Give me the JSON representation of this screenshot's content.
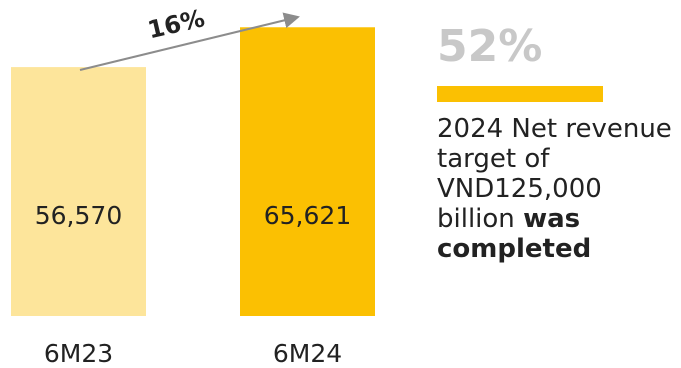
{
  "chart_data": {
    "type": "bar",
    "categories": [
      "6M23",
      "6M24"
    ],
    "values": [
      56570,
      65621
    ],
    "value_labels": [
      "56,570",
      "65,621"
    ],
    "colors": [
      "#fde59b",
      "#fbc002"
    ],
    "ylim": [
      0,
      70000
    ],
    "title": "",
    "xlabel": "",
    "ylabel": "",
    "grid": false,
    "annotations": [
      {
        "text": "16%",
        "type": "growth-arrow"
      }
    ]
  },
  "side_panel": {
    "percent": "52%",
    "accent_color": "#fbc002",
    "note_regular": "2024 Net revenue target of VND125,000 billion",
    "note_bold": "was completed"
  }
}
